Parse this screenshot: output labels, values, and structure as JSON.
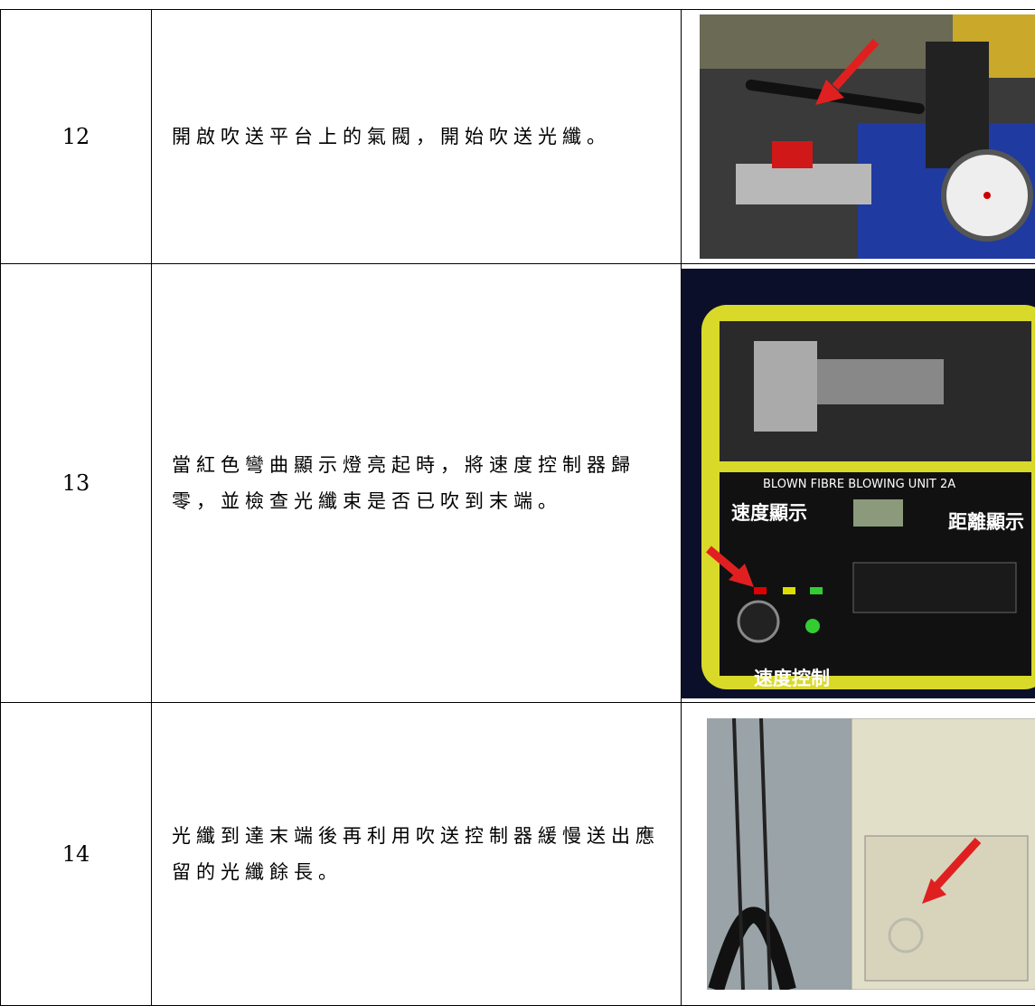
{
  "table": {
    "rows": [
      {
        "step": "12",
        "text": "開啟吹送平台上的氣閥，開始吹送光纖。"
      },
      {
        "step": "13",
        "text": "當紅色彎曲顯示燈亮起時，將速度控制器歸零，並檢查光纖束是否已吹到末端。",
        "device_label": "BLOWN FIBRE BLOWING UNIT 2A",
        "photo_labels": [
          "速度顯示",
          "距離顯示",
          "速度控制"
        ]
      },
      {
        "step": "14",
        "text": "光纖到達末端後再利用吹送控制器緩慢送出應留的光纖餘長。"
      }
    ]
  }
}
